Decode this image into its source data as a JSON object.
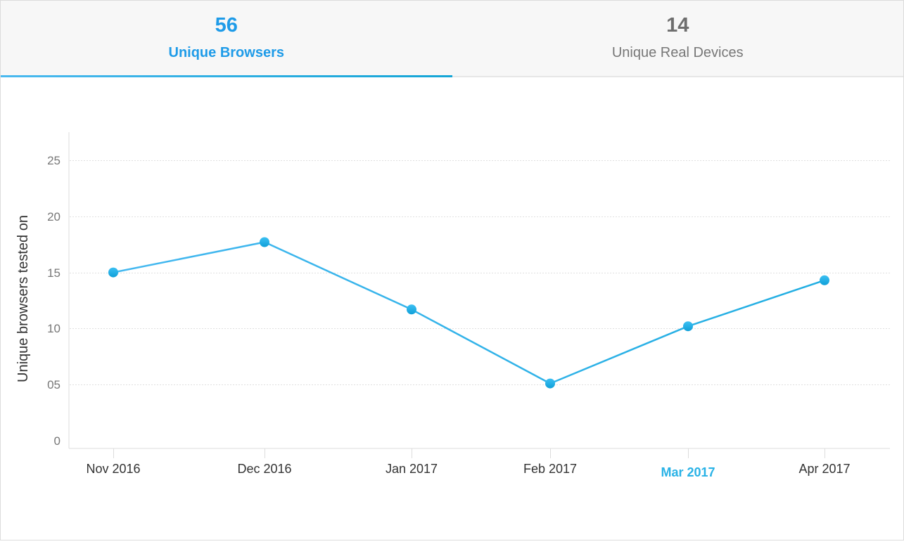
{
  "tabs": [
    {
      "count": "56",
      "label": "Unique Browsers",
      "active": true
    },
    {
      "count": "14",
      "label": "Unique Real Devices",
      "active": false
    }
  ],
  "colors": {
    "accent": "#1e9be8",
    "line": "#29b2e6",
    "point": "#1aa9e2",
    "highlight_tick": "#29b2e6",
    "grid": "#e3e3e3",
    "tab_bg": "#f7f7f7"
  },
  "chart_data": {
    "type": "line",
    "title": "",
    "xlabel": "",
    "ylabel": "Unique browsers tested on",
    "categories": [
      "Nov 2016",
      "Dec 2016",
      "Jan 2017",
      "Feb 2017",
      "Mar 2017",
      "Apr 2017"
    ],
    "highlighted_category": "Mar 2017",
    "series": [
      {
        "name": "Unique browsers tested on",
        "values": [
          15,
          17.7,
          11.7,
          5.1,
          10.2,
          14.3
        ]
      }
    ],
    "ylim": [
      0,
      25
    ],
    "yticks": [
      "0",
      "05",
      "10",
      "15",
      "20",
      "25"
    ],
    "grid": "horizontal dotted",
    "legend": "none"
  }
}
